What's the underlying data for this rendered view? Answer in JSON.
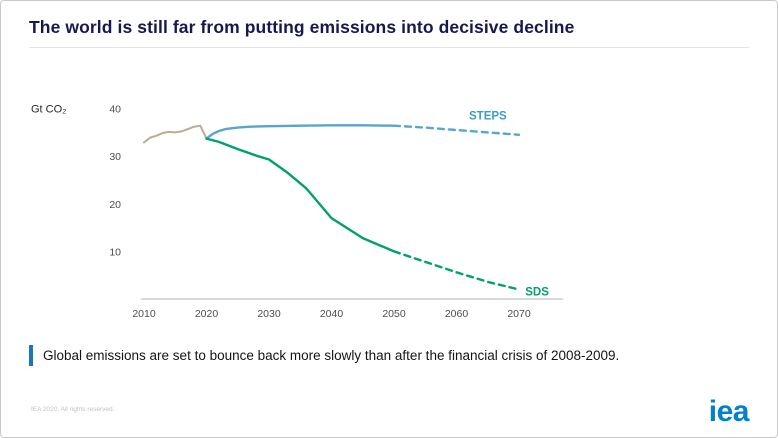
{
  "title": "The world is still far from putting emissions into decisive decline",
  "takeaway": {
    "text": "Global emissions are set to bounce back more slowly than after the financial crisis of 2008-2009.",
    "accent_color": "#1b75bc"
  },
  "footer": {
    "copyright": "IEA 2020. All rights reserved.",
    "logo": "iea",
    "logo_color": "#0082ca"
  },
  "chart_data": {
    "type": "line",
    "title": "",
    "xlabel": "",
    "ylabel": "Gt CO₂",
    "xlim": [
      2010,
      2070
    ],
    "ylim": [
      0,
      42
    ],
    "xticks": [
      2010,
      2020,
      2030,
      2040,
      2050,
      2060,
      2070
    ],
    "yticks": [
      10,
      20,
      30,
      40
    ],
    "grid": false,
    "legend_position": "inline-labels",
    "series": [
      {
        "name": "historical-emissions",
        "color": "#b9ae90",
        "dashed": false,
        "width": 2,
        "x": [
          2010,
          2011,
          2012,
          2013,
          2014,
          2015,
          2016,
          2017,
          2018,
          2019,
          2020
        ],
        "values": [
          32.9,
          33.9,
          34.3,
          34.9,
          35.1,
          35.0,
          35.2,
          35.7,
          36.2,
          36.4,
          33.7
        ]
      },
      {
        "name": "steps",
        "color": "#58a6cf",
        "dashed": false,
        "width": 2.4,
        "x": [
          2020,
          2021,
          2022,
          2023,
          2025,
          2027,
          2030,
          2035,
          2040,
          2045,
          2050
        ],
        "values": [
          33.7,
          34.7,
          35.3,
          35.7,
          36.0,
          36.2,
          36.3,
          36.4,
          36.5,
          36.5,
          36.4
        ]
      },
      {
        "name": "steps-projection",
        "color": "#58a6cf",
        "dashed": true,
        "width": 2.4,
        "x": [
          2050,
          2055,
          2060,
          2065,
          2070
        ],
        "values": [
          36.4,
          36.0,
          35.5,
          35.0,
          34.5
        ]
      },
      {
        "name": "sds",
        "color": "#00a26a",
        "dashed": false,
        "width": 2.4,
        "x": [
          2020,
          2022,
          2025,
          2028,
          2030,
          2033,
          2036,
          2040,
          2045,
          2050
        ],
        "values": [
          33.7,
          33.0,
          31.5,
          30.1,
          29.3,
          26.5,
          23.2,
          17.0,
          12.8,
          10.0
        ]
      },
      {
        "name": "sds-projection",
        "color": "#00a26a",
        "dashed": true,
        "width": 2.4,
        "x": [
          2050,
          2055,
          2060,
          2065,
          2070
        ],
        "values": [
          10.0,
          7.8,
          5.6,
          3.6,
          2.0
        ]
      }
    ],
    "annotations": [
      {
        "text": "STEPS",
        "color": "#3f9bc8",
        "x": 2062,
        "y": 38.6
      },
      {
        "text": "SDS",
        "color": "#00a26a",
        "x": 2071,
        "y": 1.6
      }
    ]
  }
}
